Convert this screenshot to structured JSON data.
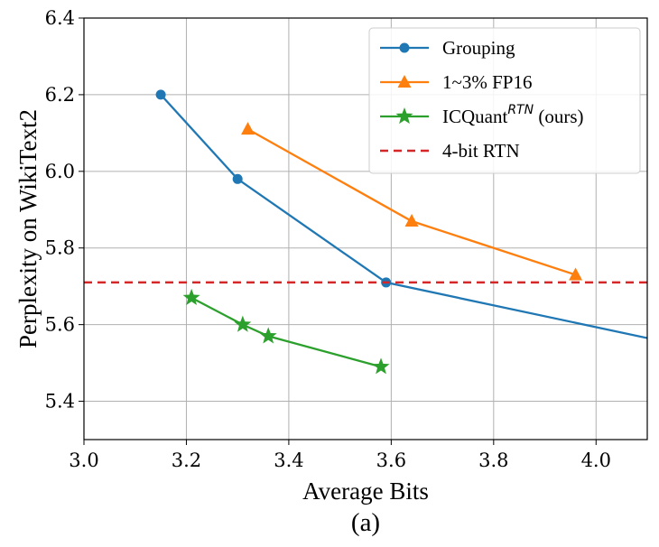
{
  "chart_data": {
    "type": "line",
    "caption": "(a)",
    "xlabel": "Average Bits",
    "ylabel": "Perplexity on WikiText2",
    "xlim": [
      3.0,
      4.1
    ],
    "ylim": [
      5.3,
      6.4
    ],
    "xticks": [
      "3.0",
      "3.2",
      "3.4",
      "3.6",
      "3.8",
      "4.0"
    ],
    "yticks": [
      "5.4",
      "5.6",
      "5.8",
      "6.0",
      "6.2",
      "6.4"
    ],
    "grid": true,
    "legend_position": "top-right",
    "series": [
      {
        "name": "Grouping",
        "color": "#1f77b4",
        "marker": "circle",
        "x": [
          3.15,
          3.3,
          3.59,
          4.1
        ],
        "y": [
          6.2,
          5.98,
          5.71,
          5.565
        ],
        "marker_count": 3
      },
      {
        "name": "1~3% FP16",
        "color": "#ff7f0e",
        "marker": "triangle",
        "x": [
          3.32,
          3.64,
          3.96
        ],
        "y": [
          6.11,
          5.87,
          5.73
        ],
        "marker_count": 3
      },
      {
        "name": "ICQuant",
        "name_superscript": "RTN",
        "name_suffix": " (ours)",
        "color": "#2ca02c",
        "marker": "star",
        "x": [
          3.21,
          3.31,
          3.36,
          3.58
        ],
        "y": [
          5.67,
          5.6,
          5.57,
          5.49
        ],
        "marker_count": 4
      },
      {
        "name": "4-bit RTN",
        "color": "#d62728",
        "style": "dashed",
        "hline": 5.71
      }
    ]
  }
}
